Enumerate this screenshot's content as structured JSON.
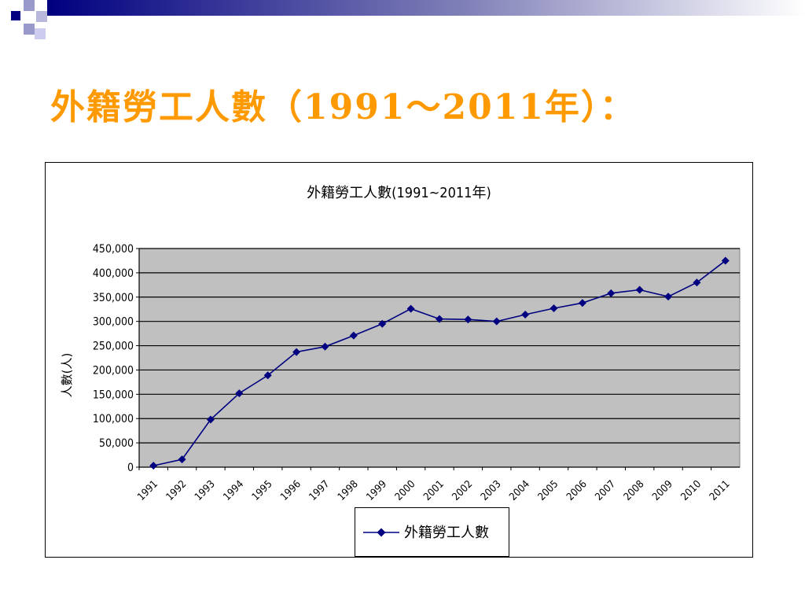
{
  "slide": {
    "title": "外籍勞工人數（1991～2011年）："
  },
  "chart_data": {
    "type": "line",
    "title": "外籍勞工人數(1991~2011年)",
    "xlabel": "",
    "ylabel": "人數(人)",
    "ylim": [
      0,
      450000
    ],
    "yticks": [
      0,
      50000,
      100000,
      150000,
      200000,
      250000,
      300000,
      350000,
      400000,
      450000
    ],
    "ytick_labels": [
      "0",
      "50,000",
      "100,000",
      "150,000",
      "200,000",
      "250,000",
      "300,000",
      "350,000",
      "400,000",
      "450,000"
    ],
    "categories": [
      "1991",
      "1992",
      "1993",
      "1994",
      "1995",
      "1996",
      "1997",
      "1998",
      "1999",
      "2000",
      "2001",
      "2002",
      "2003",
      "2004",
      "2005",
      "2006",
      "2007",
      "2008",
      "2009",
      "2010",
      "2011"
    ],
    "series": [
      {
        "name": "外籍勞工人數",
        "color": "#000080",
        "values": [
          3000,
          16000,
          98000,
          152000,
          189000,
          237000,
          248000,
          271000,
          295000,
          326000,
          305000,
          304000,
          300000,
          314000,
          327000,
          338000,
          358000,
          365000,
          351000,
          380000,
          425000
        ]
      }
    ],
    "plot_background": "#c0c0c0",
    "grid": true,
    "legend_position": "bottom"
  }
}
